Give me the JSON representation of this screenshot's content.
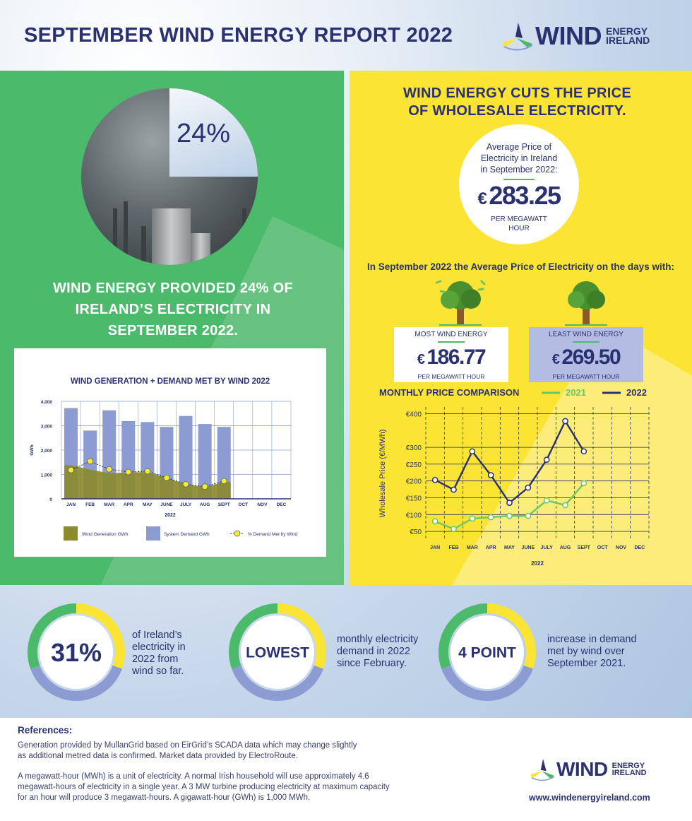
{
  "header": {
    "title": "SEPTEMBER WIND ENERGY REPORT 2022",
    "logo_word": "WIND",
    "logo_sub_1": "ENERGY",
    "logo_sub_2": "IRELAND"
  },
  "colors": {
    "navy": "#2a3170",
    "green": "#4cba6b",
    "yellow": "#fbe433",
    "olive": "#8b8b2e",
    "lavender": "#8c9bd2",
    "lightgreen": "#6cc56a"
  },
  "left_panel": {
    "photo_percent": "24%",
    "headline": "WIND ENERGY PROVIDED 24% OF IRELAND’S ELECTRICITY IN SEPTEMBER 2022."
  },
  "right_panel": {
    "headline_1": "WIND ENERGY CUTS THE PRICE",
    "headline_2": "OF WHOLESALE ELECTRICITY.",
    "avg_label_1": "Average Price of",
    "avg_label_2": "Electricity in Ireland",
    "avg_label_3": "in September 2022:",
    "avg_currency": "€",
    "avg_value": "283.25",
    "avg_unit_1": "PER MEGAWATT",
    "avg_unit_2": "HOUR",
    "days_intro": "In September 2022 the Average Price of Electricity on the days with:",
    "most": {
      "label": "MOST WIND ENERGY",
      "currency": "€",
      "value": "186.77",
      "unit": "PER MEGAWATT HOUR"
    },
    "least": {
      "label": "LEAST WIND ENERGY",
      "currency": "€",
      "value": "269.50",
      "unit": "PER MEGAWATT HOUR"
    }
  },
  "stats": [
    {
      "big": "31%",
      "text": [
        "of Ireland’s",
        "electricity in",
        "2022 from",
        "wind so far."
      ]
    },
    {
      "big": "LOWEST",
      "text": [
        "monthly electricity",
        "demand in 2022",
        "since February."
      ]
    },
    {
      "big": "4 POINT",
      "text": [
        "increase in demand",
        "met by wind over",
        "September 2021."
      ]
    }
  ],
  "references": {
    "title": "References:",
    "p1_line1": "Generation provided by MullanGrid based on EirGrid’s SCADA data which may change slightly",
    "p1_line2": "as additional metred data is confirmed. Market data provided by ElectroRoute.",
    "p2_line1": "A megawatt-hour (MWh) is a unit of electricity. A normal Irish household will use approximately 4.6",
    "p2_line2": "megawatt-hours of electricity in a single year. A 3 MW turbine producing electricity at maximum capacity",
    "p2_line3": "for an hour will produce 3 megawatt-hours. A gigawatt-hour (GWh) is 1,000 MWh.",
    "website": "www.windenergyireland.com"
  },
  "chart_data": [
    {
      "type": "bar",
      "title": "WIND GENERATION + DEMAND MET BY WIND 2022",
      "xlabel": "2022",
      "ylabel": "GWh",
      "ylim": [
        0,
        4000
      ],
      "yticks": [
        "0",
        "1,000",
        "2,000",
        "3,000",
        "4,000"
      ],
      "categories": [
        "JAN",
        "FEB",
        "MAR",
        "APR",
        "MAY",
        "JUNE",
        "JULY",
        "AUG",
        "SEPT",
        "OCT",
        "NOV",
        "DEC"
      ],
      "grid": true,
      "legend_position": "bottom",
      "series": [
        {
          "name": "Wind Generation GWh",
          "type": "area",
          "values": [
            1380,
            1200,
            1050,
            1080,
            1100,
            850,
            600,
            470,
            700,
            null,
            null,
            null
          ]
        },
        {
          "name": "System Demand GWh",
          "type": "bar",
          "values": [
            3720,
            2800,
            3630,
            3190,
            3150,
            2950,
            3400,
            3070,
            2950,
            null,
            null,
            null
          ]
        },
        {
          "name": "% Demand Met by Wind",
          "type": "line",
          "values": [
            1180,
            1540,
            1210,
            1100,
            1130,
            860,
            600,
            500,
            730,
            null,
            null,
            null
          ]
        }
      ]
    },
    {
      "type": "line",
      "title": "MONTHLY PRICE COMPARISON",
      "xlabel": "2022",
      "ylabel": "Wholesale Price (€/MWh)",
      "ylim": [
        25,
        420
      ],
      "yticks": [
        "€50",
        "€100",
        "€150",
        "€200",
        "€250",
        "€300",
        "€400"
      ],
      "ytick_values": [
        50,
        100,
        150,
        200,
        250,
        300,
        400
      ],
      "categories": [
        "JAN",
        "FEB",
        "MAR",
        "APR",
        "MAY",
        "JUNE",
        "JULY",
        "AUG",
        "SEPT",
        "OCT",
        "NOV",
        "DEC"
      ],
      "grid": true,
      "legend_position": "top-right",
      "series": [
        {
          "name": "2021",
          "color": "#6cc56a",
          "values": [
            80,
            57,
            88,
            92,
            96,
            96,
            142,
            128,
            193,
            null,
            null,
            null
          ]
        },
        {
          "name": "2022",
          "color": "#2a3170",
          "values": [
            203,
            174,
            288,
            217,
            135,
            180,
            263,
            378,
            288,
            null,
            null,
            null
          ]
        }
      ]
    }
  ]
}
